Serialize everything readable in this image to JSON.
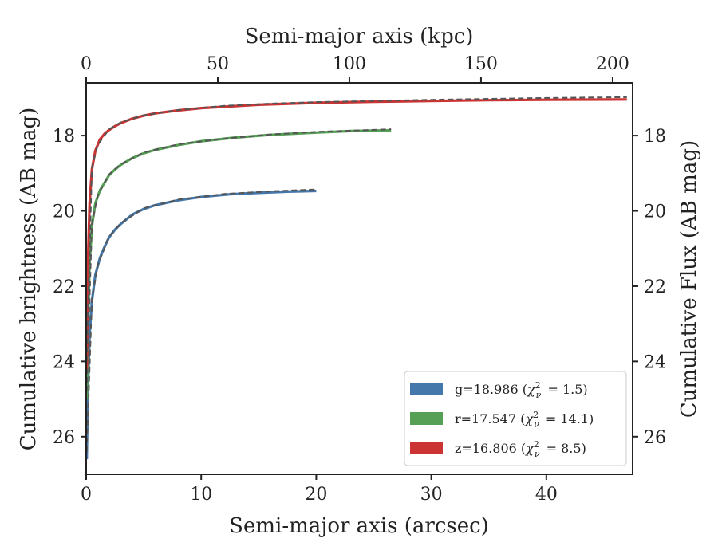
{
  "chart_data": {
    "type": "line",
    "xlabel": "Semi-major axis (arcsec)",
    "xlabel_top": "Semi-major axis (kpc)",
    "ylabel": "Cumulative brightness (AB mag)",
    "ylabel_right": "Cumulative Flux (AB mag)",
    "xlim": [
      0,
      47.5
    ],
    "ylim": [
      27.0,
      16.6
    ],
    "y_inverted": true,
    "xticks": [
      "0",
      "10",
      "20",
      "30",
      "40"
    ],
    "xticks_top": [
      "0",
      "50",
      "100",
      "150",
      "200"
    ],
    "yticks": [
      "18",
      "20",
      "22",
      "24",
      "26"
    ],
    "grid": false,
    "legend_placement": "lower-right",
    "series": [
      {
        "name": "g=18.986 (χ²ᵥ = 1.5)",
        "band": "g",
        "mag": "18.986",
        "chi2": "1.5",
        "color": "#4477aa",
        "x": [
          0.05,
          0.15,
          0.3,
          0.5,
          0.8,
          1.2,
          1.6,
          2.0,
          2.5,
          3.0,
          4.0,
          5.0,
          6.0,
          8.0,
          10.0,
          12.5,
          15.0,
          17.5,
          20.0
        ],
        "y": [
          26.6,
          24.7,
          23.3,
          22.4,
          21.7,
          21.25,
          20.95,
          20.7,
          20.5,
          20.35,
          20.1,
          19.95,
          19.85,
          19.72,
          19.63,
          19.56,
          19.52,
          19.49,
          19.47
        ],
        "model_x": [
          0.05,
          0.5,
          1.0,
          2.0,
          3.0,
          5.0,
          8.0,
          12.0,
          16.0,
          20.0
        ],
        "model_y": [
          26.4,
          22.35,
          21.45,
          20.68,
          20.33,
          19.93,
          19.7,
          19.55,
          19.48,
          19.43
        ]
      },
      {
        "name": "r=17.547 (χ²ᵥ = 14.1)",
        "band": "r",
        "mag": "17.547",
        "chi2": "14.1",
        "color": "#55a055",
        "x": [
          0.05,
          0.15,
          0.3,
          0.5,
          0.8,
          1.2,
          1.6,
          2.0,
          2.5,
          3.0,
          4.0,
          5.0,
          6.0,
          8.0,
          10.0,
          13.0,
          16.0,
          20.0,
          23.0,
          26.5
        ],
        "y": [
          25.0,
          23.0,
          21.4,
          20.4,
          19.8,
          19.45,
          19.25,
          19.05,
          18.9,
          18.78,
          18.6,
          18.47,
          18.38,
          18.25,
          18.15,
          18.05,
          17.98,
          17.92,
          17.88,
          17.86
        ],
        "model_x": [
          0.05,
          0.5,
          1.0,
          2.0,
          3.0,
          5.0,
          8.0,
          12.0,
          16.0,
          20.0,
          26.5
        ],
        "model_y": [
          24.8,
          20.35,
          19.6,
          19.03,
          18.76,
          18.45,
          18.23,
          18.08,
          17.97,
          17.9,
          17.83
        ]
      },
      {
        "name": "z=16.806 (χ²ᵥ = 8.5)",
        "band": "z",
        "mag": "16.806",
        "chi2": "8.5",
        "color": "#cc3333",
        "x": [
          0.05,
          0.15,
          0.3,
          0.5,
          0.8,
          1.2,
          1.6,
          2.0,
          2.5,
          3.0,
          4.0,
          5.0,
          6.0,
          8.0,
          10.0,
          15.0,
          20.0,
          25.0,
          30.0,
          35.0,
          40.0,
          47.0
        ],
        "y": [
          24.2,
          21.4,
          19.8,
          18.9,
          18.4,
          18.1,
          17.95,
          17.85,
          17.75,
          17.67,
          17.55,
          17.47,
          17.41,
          17.33,
          17.27,
          17.18,
          17.13,
          17.1,
          17.08,
          17.06,
          17.05,
          17.04
        ],
        "model_x": [
          0.05,
          0.5,
          1.0,
          2.0,
          3.0,
          5.0,
          8.0,
          12.0,
          16.0,
          20.0,
          30.0,
          40.0,
          47.0
        ],
        "model_y": [
          24.0,
          18.85,
          18.25,
          17.83,
          17.65,
          17.46,
          17.32,
          17.21,
          17.15,
          17.11,
          17.05,
          17.0,
          16.98
        ]
      }
    ]
  }
}
